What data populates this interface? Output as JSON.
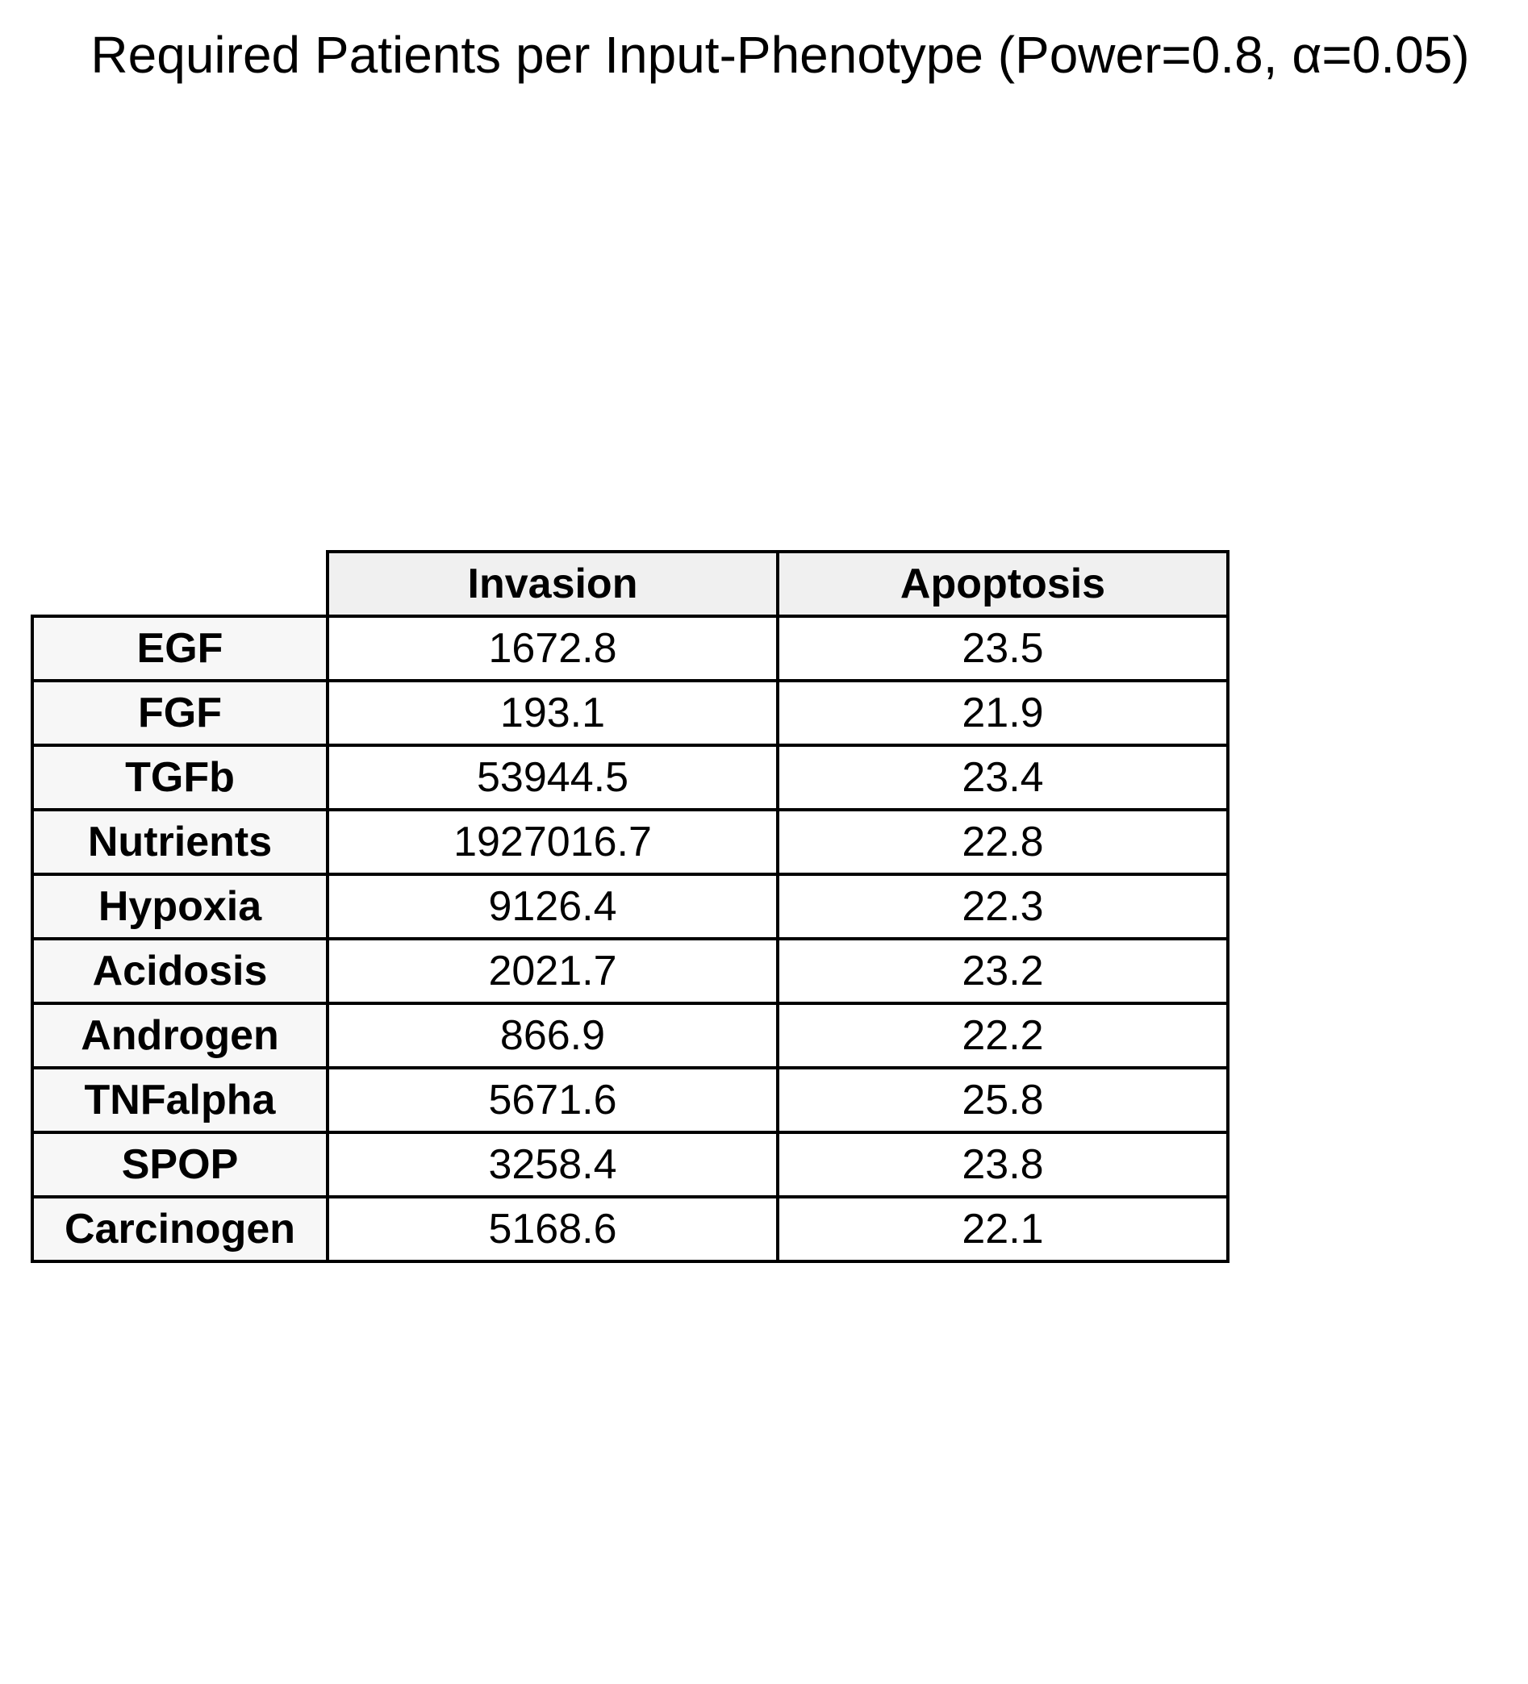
{
  "chart_data": {
    "type": "table",
    "title": "Required Patients per Input-Phenotype (Power=0.8, α=0.05)",
    "columns": [
      "Invasion",
      "Apoptosis"
    ],
    "rows": [
      {
        "label": "EGF",
        "values": [
          "1672.8",
          "23.5"
        ]
      },
      {
        "label": "FGF",
        "values": [
          "193.1",
          "21.9"
        ]
      },
      {
        "label": "TGFb",
        "values": [
          "53944.5",
          "23.4"
        ]
      },
      {
        "label": "Nutrients",
        "values": [
          "1927016.7",
          "22.8"
        ]
      },
      {
        "label": "Hypoxia",
        "values": [
          "9126.4",
          "22.3"
        ]
      },
      {
        "label": "Acidosis",
        "values": [
          "2021.7",
          "23.2"
        ]
      },
      {
        "label": "Androgen",
        "values": [
          "866.9",
          "22.2"
        ]
      },
      {
        "label": "TNFalpha",
        "values": [
          "5671.6",
          "25.8"
        ]
      },
      {
        "label": "SPOP",
        "values": [
          "3258.4",
          "23.8"
        ]
      },
      {
        "label": "Carcinogen",
        "values": [
          "5168.6",
          "22.1"
        ]
      }
    ],
    "colors": {
      "header_fill": "#f0f0f0",
      "row_header_fill": "#f7f7f7",
      "cell_fill": "#ffffff",
      "border": "#000000"
    }
  }
}
